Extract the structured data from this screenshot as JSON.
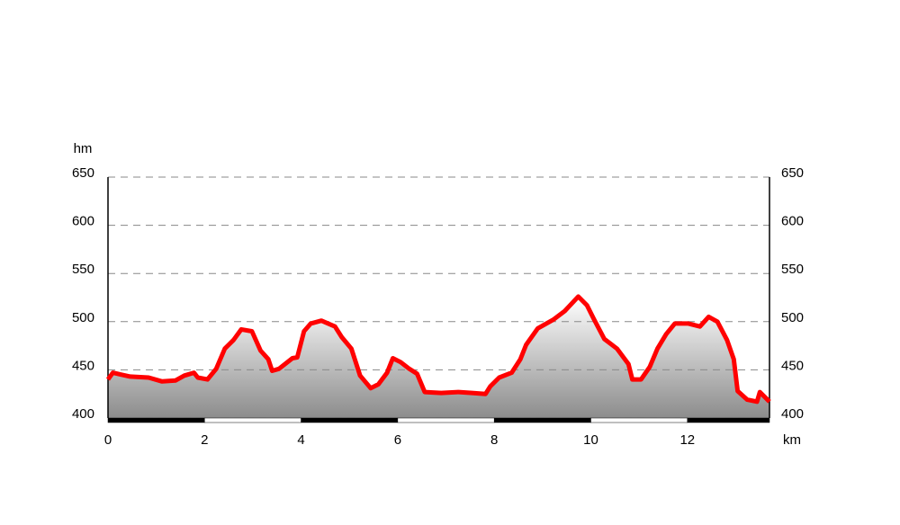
{
  "chart_data": {
    "type": "area",
    "y_label": "hm",
    "x_label": "km",
    "xlim": [
      0,
      13.7
    ],
    "ylim": [
      400,
      650
    ],
    "xticks": [
      0,
      2,
      4,
      6,
      8,
      10,
      12
    ],
    "yticks": [
      400,
      450,
      500,
      550,
      600,
      650
    ],
    "grid": true,
    "color": "#ff0000",
    "x": [
      0,
      0.1,
      0.28,
      0.46,
      0.84,
      1.12,
      1.4,
      1.58,
      1.78,
      1.86,
      2.06,
      2.24,
      2.42,
      2.6,
      2.76,
      2.98,
      3.16,
      3.32,
      3.4,
      3.54,
      3.82,
      3.92,
      4.06,
      4.2,
      4.42,
      4.7,
      4.84,
      5.04,
      5.22,
      5.44,
      5.6,
      5.78,
      5.9,
      6.06,
      6.24,
      6.4,
      6.56,
      6.9,
      7.26,
      7.54,
      7.82,
      7.92,
      8.1,
      8.36,
      8.54,
      8.66,
      8.9,
      9.22,
      9.46,
      9.74,
      9.92,
      10.06,
      10.28,
      10.54,
      10.78,
      10.86,
      11.04,
      11.22,
      11.38,
      11.56,
      11.74,
      12.02,
      12.26,
      12.44,
      12.62,
      12.82,
      12.96,
      13.04,
      13.24,
      13.44,
      13.5,
      13.7
    ],
    "values": [
      440,
      447,
      445,
      443,
      442,
      438,
      439,
      444,
      447,
      442,
      440,
      451,
      472,
      481,
      492,
      490,
      470,
      461,
      449,
      451,
      462,
      463,
      490,
      498,
      501,
      495,
      484,
      472,
      444,
      431,
      435,
      447,
      462,
      458,
      451,
      446,
      427,
      426,
      427,
      426,
      425,
      433,
      442,
      447,
      461,
      476,
      493,
      502,
      511,
      526,
      517,
      503,
      482,
      472,
      456,
      440,
      440,
      453,
      472,
      487,
      498,
      498,
      495,
      505,
      500,
      481,
      461,
      428,
      419,
      417,
      427,
      417
    ]
  }
}
